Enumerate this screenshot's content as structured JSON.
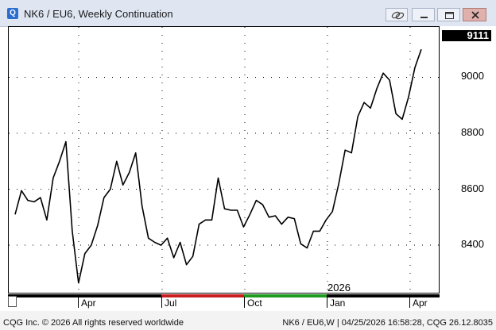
{
  "window": {
    "title": "NK6 / EU6, Weekly Continuation",
    "app_icon_letter": "Q"
  },
  "chart_data": {
    "type": "line",
    "symbol": "NK6 / EU6",
    "interval": "Weekly Continuation",
    "yticks": [
      8400,
      8600,
      8800,
      9000
    ],
    "ylim": [
      8230,
      9180
    ],
    "last_value": "9111",
    "x_labels": [
      "Apr",
      "Jul",
      "Oct",
      "Jan",
      "Apr"
    ],
    "year_label": "2026",
    "series": [
      {
        "values": [
          8510,
          8595,
          8560,
          8555,
          8570,
          8490,
          8640,
          8700,
          8770,
          8450,
          8265,
          8370,
          8400,
          8470,
          8570,
          8600,
          8700,
          8615,
          8660,
          8730,
          8540,
          8425,
          8410,
          8400,
          8425,
          8355,
          8410,
          8330,
          8360,
          8475,
          8490,
          8490,
          8640,
          8530,
          8525,
          8525,
          8465,
          8510,
          8560,
          8545,
          8500,
          8505,
          8475,
          8500,
          8495,
          8405,
          8390,
          8450,
          8450,
          8490,
          8520,
          8620,
          8740,
          8730,
          8860,
          8910,
          8890,
          8960,
          9015,
          8990,
          8870,
          8850,
          8930,
          9035,
          9100
        ]
      }
    ],
    "grid": true
  },
  "xaxis": {
    "segment_colors": [
      "#000000",
      "#c81e1e",
      "#1e9a1e",
      "#000000"
    ]
  },
  "status": {
    "left": "CQG Inc. © 2026 All rights reserved worldwide",
    "right": "NK6 / EU6,W | 04/25/2026 16:58:28, CQG 26.12.8035"
  }
}
